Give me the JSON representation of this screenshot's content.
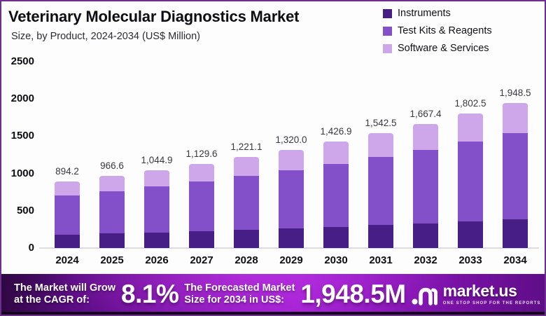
{
  "header": {
    "title": "Veterinary Molecular Diagnostics Market",
    "subtitle": "Size, by Product, 2024-2034 (US$ Million)"
  },
  "legend": [
    {
      "label": "Instruments",
      "color": "#471d86"
    },
    {
      "label": "Test Kits & Reagents",
      "color": "#8450c9"
    },
    {
      "label": "Software & Services",
      "color": "#cda7ea"
    }
  ],
  "chart_data": {
    "type": "bar",
    "stacked": true,
    "title": "Veterinary Molecular Diagnostics Market",
    "subtitle": "Size, by Product, 2024-2034 (US$ Million)",
    "categories": [
      "2024",
      "2025",
      "2026",
      "2027",
      "2028",
      "2029",
      "2030",
      "2031",
      "2032",
      "2033",
      "2034"
    ],
    "series": [
      {
        "name": "Instruments",
        "color": "#471d86",
        "values": [
          178.8,
          193.3,
          209.0,
          225.9,
          244.2,
          264.0,
          285.4,
          308.5,
          333.5,
          360.5,
          389.7
        ]
      },
      {
        "name": "Test Kits & Reagents",
        "color": "#8450c9",
        "values": [
          527.6,
          570.3,
          616.5,
          666.5,
          720.4,
          778.8,
          841.9,
          910.1,
          983.8,
          1063.5,
          1149.6
        ]
      },
      {
        "name": "Software & Services",
        "color": "#cda7ea",
        "values": [
          187.8,
          203.0,
          219.4,
          237.2,
          256.5,
          277.2,
          299.6,
          323.9,
          350.1,
          378.5,
          409.2
        ]
      }
    ],
    "totals": [
      894.2,
      966.6,
      1044.9,
      1129.6,
      1221.1,
      1320.0,
      1426.9,
      1542.5,
      1667.4,
      1802.5,
      1948.5
    ],
    "total_labels": [
      "894.2",
      "966.6",
      "1,044.9",
      "1,129.6",
      "1,221.1",
      "1,320.0",
      "1,426.9",
      "1,542.5",
      "1,667.4",
      "1,802.5",
      "1,948.5"
    ],
    "ylim": [
      0,
      2500
    ],
    "yticks": [
      0,
      500,
      1000,
      1500,
      2000,
      2500
    ],
    "grid": false,
    "legend_position": "top-right"
  },
  "banner": {
    "cagr_label_line1": "The Market will Grow",
    "cagr_label_line2": "at the CAGR of:",
    "cagr_value": "8.1%",
    "forecast_label_line1": "The Forecasted Market",
    "forecast_label_line2": "Size for 2034 in US$:",
    "forecast_value": "1,948.5M",
    "logo_text": "market.us",
    "logo_tagline": "ONE STOP SHOP FOR THE REPORTS"
  }
}
